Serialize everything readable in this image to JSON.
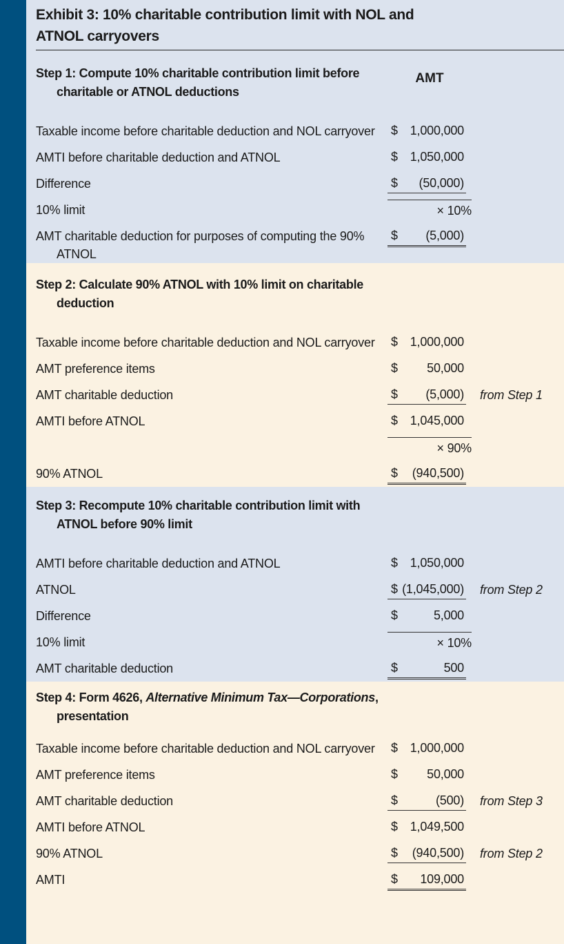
{
  "title": "Exhibit 3: 10% charitable contribution limit with NOL and ATNOL carryovers",
  "column_header": "AMT",
  "steps": [
    {
      "heading": "Step 1: Compute 10% charitable contribution limit before charitable or ATNOL deductions",
      "rows": [
        {
          "label": "Taxable income before charitable deduction and NOL carryover",
          "currency": "$",
          "amount": "1,000,000"
        },
        {
          "label": "AMTI before charitable deduction and ATNOL",
          "currency": "$",
          "amount": "1,050,000"
        },
        {
          "label": "Difference",
          "currency": "$",
          "amount": "(50,000)",
          "rule": "single"
        },
        {
          "label": "10% limit",
          "multiplier": "× 10%"
        },
        {
          "label": "AMT charitable deduction for purposes of computing the 90% ATNOL",
          "currency": "$",
          "amount": "(5,000)",
          "rule": "double"
        }
      ]
    },
    {
      "heading": "Step 2: Calculate 90% ATNOL with 10% limit on charitable deduction",
      "rows": [
        {
          "label": "Taxable income before charitable deduction and NOL carryover",
          "currency": "$",
          "amount": "1,000,000"
        },
        {
          "label": "AMT preference items",
          "currency": "$",
          "amount": "50,000"
        },
        {
          "label": "AMT charitable deduction",
          "currency": "$",
          "amount": "(5,000)",
          "rule": "single",
          "note": "from Step 1"
        },
        {
          "label": "AMTI before ATNOL",
          "currency": "$",
          "amount": "1,045,000"
        },
        {
          "multiplier": "× 90%"
        },
        {
          "label": "90% ATNOL",
          "currency": "$",
          "amount": "(940,500)",
          "rule": "double"
        }
      ]
    },
    {
      "heading": "Step 3: Recompute 10% charitable contribution limit with ATNOL before 90% limit",
      "rows": [
        {
          "label": "AMTI before charitable deduction and ATNOL",
          "currency": "$",
          "amount": "1,050,000"
        },
        {
          "label": "ATNOL",
          "currency": "$",
          "amount": "(1,045,000)",
          "rule": "single",
          "note": "from Step 2"
        },
        {
          "label": "Difference",
          "currency": "$",
          "amount": "5,000"
        },
        {
          "label": "10% limit",
          "multiplier": "× 10%"
        },
        {
          "label": "AMT charitable deduction",
          "currency": "$",
          "amount": "500",
          "rule": "double"
        }
      ]
    },
    {
      "heading": "Step 4: Form 4626, ",
      "heading_italic": "Alternative Minimum Tax—Corporations",
      "heading_end": ", presentation",
      "rows": [
        {
          "label": "Taxable income before charitable deduction and NOL carryover",
          "currency": "$",
          "amount": "1,000,000"
        },
        {
          "label": "AMT preference items",
          "currency": "$",
          "amount": "50,000"
        },
        {
          "label": "AMT charitable deduction",
          "currency": "$",
          "amount": "(500)",
          "rule": "single",
          "note": "from Step 3"
        },
        {
          "label": "AMTI before ATNOL",
          "currency": "$",
          "amount": "1,049,500"
        },
        {
          "label": "90% ATNOL",
          "currency": "$",
          "amount": "(940,500)",
          "rule": "single",
          "note": "from Step 2"
        },
        {
          "label": "AMTI",
          "currency": "$",
          "amount": "109,000",
          "rule": "double"
        }
      ]
    }
  ]
}
